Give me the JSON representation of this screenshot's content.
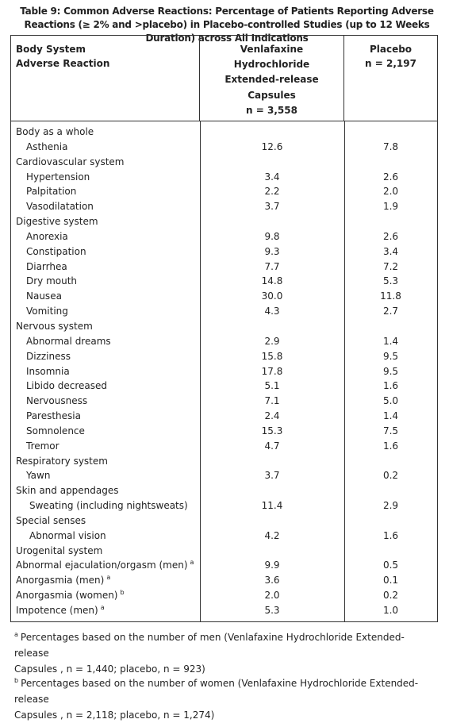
{
  "caption": "Table 9: Common Adverse Reactions: Percentage of Patients Reporting Adverse Reactions (≥ 2% and >placebo) in Placebo-controlled Studies (up to 12 Weeks Duration) across All Indications",
  "header": {
    "col1_line1": "Body System",
    "col1_line2": "Adverse Reaction",
    "col2_lines": [
      "Venlafaxine",
      "Hydrochloride",
      "Extended-release",
      "Capsules",
      "n = 3,558"
    ],
    "col3_lines": [
      "Placebo",
      "n = 2,197"
    ]
  },
  "rows": [
    {
      "label": "Body as a whole",
      "v1": "",
      "v2": "",
      "indent": 0,
      "sup": ""
    },
    {
      "label": "Asthenia",
      "v1": "12.6",
      "v2": "7.8",
      "indent": 1,
      "sup": ""
    },
    {
      "label": "Cardiovascular system",
      "v1": "",
      "v2": "",
      "indent": 0,
      "sup": ""
    },
    {
      "label": "Hypertension",
      "v1": "3.4",
      "v2": "2.6",
      "indent": 1,
      "sup": ""
    },
    {
      "label": "Palpitation",
      "v1": "2.2",
      "v2": "2.0",
      "indent": 1,
      "sup": ""
    },
    {
      "label": "Vasodilatation",
      "v1": "3.7",
      "v2": "1.9",
      "indent": 1,
      "sup": ""
    },
    {
      "label": "Digestive system",
      "v1": "",
      "v2": "",
      "indent": 0,
      "sup": ""
    },
    {
      "label": "Anorexia",
      "v1": "9.8",
      "v2": "2.6",
      "indent": 1,
      "sup": ""
    },
    {
      "label": "Constipation",
      "v1": "9.3",
      "v2": "3.4",
      "indent": 1,
      "sup": ""
    },
    {
      "label": "Diarrhea",
      "v1": "7.7",
      "v2": "7.2",
      "indent": 1,
      "sup": ""
    },
    {
      "label": "Dry mouth",
      "v1": "14.8",
      "v2": "5.3",
      "indent": 1,
      "sup": ""
    },
    {
      "label": "Nausea",
      "v1": "30.0",
      "v2": "11.8",
      "indent": 1,
      "sup": ""
    },
    {
      "label": "Vomiting",
      "v1": "4.3",
      "v2": "2.7",
      "indent": 1,
      "sup": ""
    },
    {
      "label": "Nervous system",
      "v1": "",
      "v2": "",
      "indent": 0,
      "sup": ""
    },
    {
      "label": "Abnormal dreams",
      "v1": "2.9",
      "v2": "1.4",
      "indent": 1,
      "sup": ""
    },
    {
      "label": "Dizziness",
      "v1": "15.8",
      "v2": "9.5",
      "indent": 1,
      "sup": ""
    },
    {
      "label": "Insomnia",
      "v1": "17.8",
      "v2": "9.5",
      "indent": 1,
      "sup": ""
    },
    {
      "label": "Libido decreased",
      "v1": "5.1",
      "v2": "1.6",
      "indent": 1,
      "sup": ""
    },
    {
      "label": "Nervousness",
      "v1": "7.1",
      "v2": "5.0",
      "indent": 1,
      "sup": ""
    },
    {
      "label": "Paresthesia",
      "v1": "2.4",
      "v2": "1.4",
      "indent": 1,
      "sup": ""
    },
    {
      "label": "Somnolence",
      "v1": "15.3",
      "v2": "7.5",
      "indent": 1,
      "sup": ""
    },
    {
      "label": "Tremor",
      "v1": "4.7",
      "v2": "1.6",
      "indent": 1,
      "sup": ""
    },
    {
      "label": "Respiratory system",
      "v1": "",
      "v2": "",
      "indent": 0,
      "sup": ""
    },
    {
      "label": "Yawn",
      "v1": "3.7",
      "v2": "0.2",
      "indent": 1,
      "sup": ""
    },
    {
      "label": "Skin and appendages",
      "v1": "",
      "v2": "",
      "indent": 0,
      "sup": ""
    },
    {
      "label": "Sweating (including nightsweats)",
      "v1": "11.4",
      "v2": "2.9",
      "indent": 2,
      "sup": ""
    },
    {
      "label": "Special senses",
      "v1": "",
      "v2": "",
      "indent": 0,
      "sup": ""
    },
    {
      "label": "Abnormal vision",
      "v1": "4.2",
      "v2": "1.6",
      "indent": 2,
      "sup": ""
    },
    {
      "label": "Urogenital system",
      "v1": "",
      "v2": "",
      "indent": 0,
      "sup": ""
    },
    {
      "label": "Abnormal ejaculation/orgasm (men)",
      "v1": "9.9",
      "v2": "0.5",
      "indent": 0,
      "sup": "a"
    },
    {
      "label": "Anorgasmia (men)",
      "v1": "3.6",
      "v2": "0.1",
      "indent": 0,
      "sup": "a"
    },
    {
      "label": "Anorgasmia (women)",
      "v1": "2.0",
      "v2": "0.2",
      "indent": 0,
      "sup": "b"
    },
    {
      "label": "Impotence (men)",
      "v1": "5.3",
      "v2": "1.0",
      "indent": 0,
      "sup": "a"
    }
  ],
  "footnotes": [
    {
      "mark": "a",
      "line1": "Percentages based on the number of men (Venlafaxine Hydrochloride Extended-release",
      "line2": "Capsules , n = 1,440; placebo, n = 923)"
    },
    {
      "mark": "b",
      "line1": "Percentages based on the number of women (Venlafaxine Hydrochloride Extended-release",
      "line2": "Capsules , n = 2,118; placebo, n = 1,274)"
    }
  ]
}
